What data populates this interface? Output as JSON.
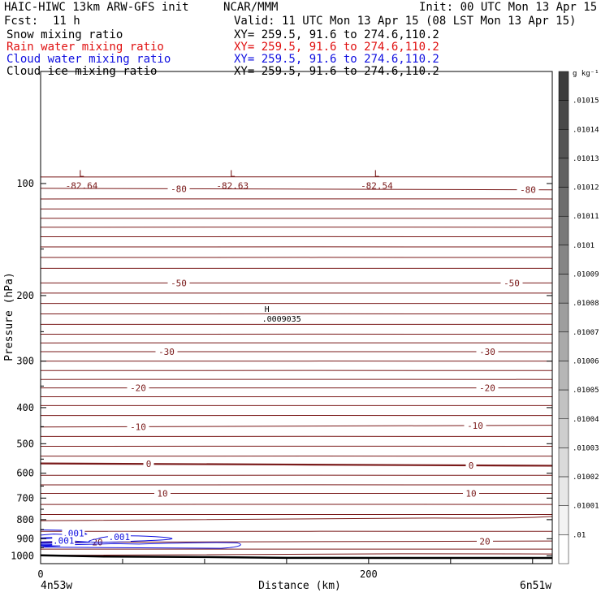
{
  "header": {
    "model": "HAIC-HIWC 13km ARW-GFS init",
    "agency": "NCAR/MMM",
    "init": "Init: 00 UTC Mon 13 Apr 15",
    "fcst_label": "Fcst:",
    "fcst_value": "11 h",
    "valid": "Valid: 11 UTC Mon 13 Apr 15 (08 LST Mon 13 Apr 15)"
  },
  "fields": [
    {
      "name": "Snow mixing ratio",
      "xy": "XY= 259.5, 91.6 to 274.6,110.2",
      "color": "#000000"
    },
    {
      "name": "Rain water mixing ratio",
      "xy": "XY= 259.5, 91.6 to 274.6,110.2",
      "color": "#e01010"
    },
    {
      "name": "Cloud water mixing ratio",
      "xy": "XY= 259.5, 91.6 to 274.6,110.2",
      "color": "#1010e0"
    },
    {
      "name": "Cloud ice mixing ratio",
      "xy": "XY= 259.5, 91.6 to 274.6,110.2",
      "color": "#000000"
    }
  ],
  "axes": {
    "ylabel": "Pressure (hPa)",
    "xlabel": "Distance (km)",
    "left_location": "4n53w",
    "right_location": "6n51w"
  },
  "colorbar": {
    "unit": "g kg⁻¹",
    "labels": [
      ".01015",
      ".01014",
      ".01013",
      ".01012",
      ".01011",
      ".0101",
      ".01009",
      ".01008",
      ".01007",
      ".01006",
      ".01005",
      ".01004",
      ".01003",
      ".01002",
      ".01001",
      ".01"
    ]
  },
  "colors": {
    "temperature_contour": "#7a1a1a",
    "cloud_water_contour": "#1010e0",
    "terrain": "#000000"
  },
  "chart_data": {
    "type": "contour-cross-section",
    "x_range_km": [
      0,
      312
    ],
    "x_ticks": [
      0,
      200
    ],
    "y_range_hpa": [
      50,
      1050
    ],
    "y_scale": "log",
    "y_ticks": [
      100,
      200,
      300,
      400,
      500,
      600,
      700,
      800,
      900,
      1000
    ],
    "isotherms": [
      {
        "label": "-80",
        "pressures": [
          103,
          104
        ]
      },
      {
        "label": "-50",
        "pressures": [
          185,
          185
        ]
      },
      {
        "label": "-30",
        "pressures": [
          283,
          283
        ]
      },
      {
        "label": "-20",
        "pressures": [
          354,
          354
        ]
      },
      {
        "label": "-10",
        "pressures": [
          451,
          446
        ]
      },
      {
        "label": "0",
        "pressures": [
          565,
          573
        ]
      },
      {
        "label": "10",
        "pressures": [
          680,
          680
        ]
      },
      {
        "label": "20",
        "pressures": [
          920,
          913
        ]
      }
    ],
    "temperature_minima": [
      {
        "letter": "L",
        "value": "-82.64",
        "x_km": 25,
        "p_hpa": 93
      },
      {
        "letter": "L",
        "value": "-82.63",
        "x_km": 117,
        "p_hpa": 93
      },
      {
        "letter": "L",
        "value": "-82.54",
        "x_km": 205,
        "p_hpa": 93
      }
    ],
    "snow_maximum": {
      "letter": "H",
      "value": ".0009035",
      "x_km": 138,
      "p_hpa": 230
    },
    "cloud_water_labels": [
      ".001",
      ".001",
      ".001"
    ],
    "terrain_pressure_hpa": [
      997,
      1005,
      1008,
      1013,
      1014
    ]
  }
}
